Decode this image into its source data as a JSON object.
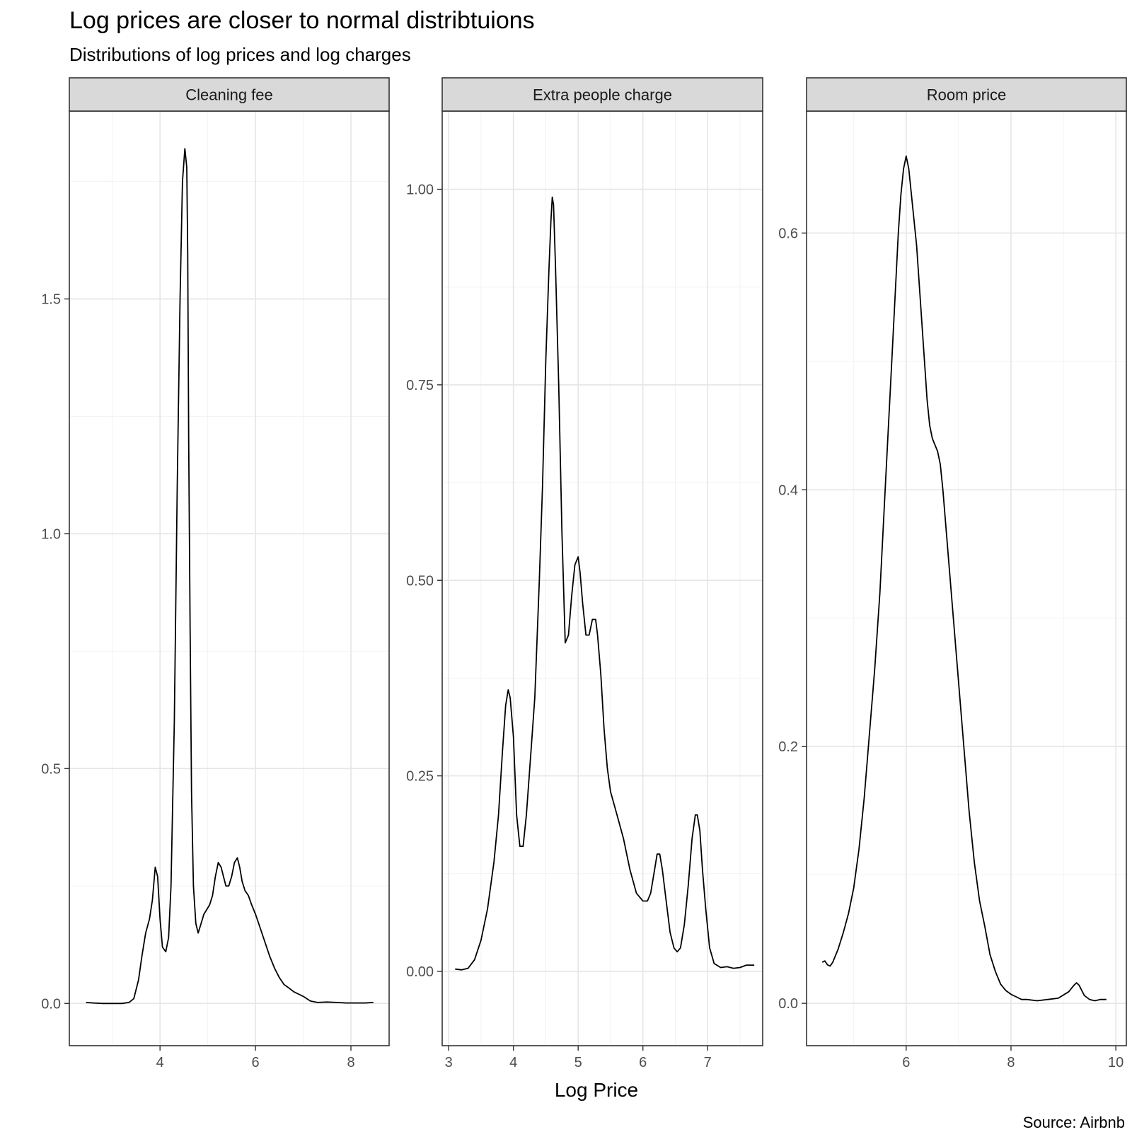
{
  "title": "Log prices are closer to normal distribtuions",
  "subtitle": "Distributions of log prices and log charges",
  "caption": "Source: Airbnb",
  "chart_data": {
    "type": "line",
    "title": "Log prices are closer to normal distribtuions",
    "subtitle": "Distributions of log prices and log charges",
    "xlabel": "Log Price",
    "ylabel": "",
    "grid": true,
    "line_color": "#000000",
    "facets": [
      {
        "label": "Cleaning fee",
        "xlim": [
          2.1,
          8.8
        ],
        "ylim": [
          -0.09,
          1.9
        ],
        "xticks": [
          4,
          6,
          8
        ],
        "yticks": [
          0.0,
          0.5,
          1.0,
          1.5
        ],
        "ytick_labels": [
          "0.0",
          "0.5",
          "1.0",
          "1.5"
        ],
        "x": [
          2.45,
          2.6,
          2.8,
          3.0,
          3.2,
          3.35,
          3.45,
          3.55,
          3.62,
          3.7,
          3.78,
          3.84,
          3.9,
          3.95,
          4.0,
          4.05,
          4.12,
          4.18,
          4.23,
          4.3,
          4.36,
          4.42,
          4.47,
          4.52,
          4.56,
          4.58,
          4.6,
          4.63,
          4.66,
          4.7,
          4.75,
          4.8,
          4.86,
          4.92,
          4.98,
          5.04,
          5.1,
          5.16,
          5.22,
          5.28,
          5.33,
          5.38,
          5.44,
          5.5,
          5.56,
          5.62,
          5.67,
          5.72,
          5.78,
          5.85,
          5.92,
          6.0,
          6.1,
          6.2,
          6.3,
          6.4,
          6.5,
          6.6,
          6.7,
          6.8,
          6.9,
          7.0,
          7.15,
          7.3,
          7.5,
          7.7,
          7.9,
          8.1,
          8.3,
          8.47
        ],
        "y": [
          0.002,
          0.001,
          0.0,
          0.0,
          0.0,
          0.002,
          0.01,
          0.05,
          0.1,
          0.15,
          0.18,
          0.22,
          0.29,
          0.27,
          0.18,
          0.12,
          0.11,
          0.14,
          0.25,
          0.6,
          1.1,
          1.5,
          1.75,
          1.82,
          1.78,
          1.6,
          1.2,
          0.8,
          0.45,
          0.25,
          0.17,
          0.15,
          0.17,
          0.19,
          0.2,
          0.21,
          0.23,
          0.27,
          0.3,
          0.29,
          0.27,
          0.25,
          0.25,
          0.27,
          0.3,
          0.31,
          0.29,
          0.26,
          0.24,
          0.23,
          0.21,
          0.19,
          0.16,
          0.13,
          0.1,
          0.075,
          0.055,
          0.04,
          0.033,
          0.025,
          0.02,
          0.015,
          0.005,
          0.002,
          0.003,
          0.002,
          0.001,
          0.001,
          0.001,
          0.002
        ]
      },
      {
        "label": "Extra people charge",
        "xlim": [
          2.9,
          7.85
        ],
        "ylim": [
          -0.095,
          1.1
        ],
        "xticks": [
          3,
          4,
          5,
          6,
          7
        ],
        "yticks": [
          0.0,
          0.25,
          0.5,
          0.75,
          1.0
        ],
        "ytick_labels": [
          "0.00",
          "0.25",
          "0.50",
          "0.75",
          "1.00"
        ],
        "x": [
          3.1,
          3.2,
          3.3,
          3.4,
          3.5,
          3.6,
          3.7,
          3.77,
          3.83,
          3.88,
          3.92,
          3.95,
          4.0,
          4.05,
          4.1,
          4.15,
          4.2,
          4.27,
          4.33,
          4.4,
          4.45,
          4.5,
          4.55,
          4.58,
          4.6,
          4.62,
          4.65,
          4.7,
          4.75,
          4.8,
          4.85,
          4.9,
          4.95,
          5.0,
          5.03,
          5.07,
          5.12,
          5.17,
          5.22,
          5.27,
          5.3,
          5.35,
          5.4,
          5.45,
          5.5,
          5.6,
          5.7,
          5.8,
          5.9,
          6.0,
          6.07,
          6.12,
          6.18,
          6.22,
          6.26,
          6.3,
          6.36,
          6.42,
          6.48,
          6.53,
          6.58,
          6.64,
          6.7,
          6.76,
          6.81,
          6.84,
          6.88,
          6.92,
          6.97,
          7.03,
          7.1,
          7.2,
          7.3,
          7.4,
          7.5,
          7.6,
          7.72
        ],
        "y": [
          0.003,
          0.002,
          0.004,
          0.015,
          0.04,
          0.08,
          0.14,
          0.2,
          0.28,
          0.34,
          0.36,
          0.35,
          0.3,
          0.2,
          0.16,
          0.16,
          0.2,
          0.28,
          0.35,
          0.5,
          0.62,
          0.78,
          0.9,
          0.96,
          0.99,
          0.98,
          0.9,
          0.75,
          0.56,
          0.42,
          0.43,
          0.48,
          0.52,
          0.53,
          0.51,
          0.47,
          0.43,
          0.43,
          0.45,
          0.45,
          0.43,
          0.38,
          0.31,
          0.26,
          0.23,
          0.2,
          0.17,
          0.13,
          0.1,
          0.09,
          0.09,
          0.1,
          0.13,
          0.15,
          0.15,
          0.13,
          0.09,
          0.05,
          0.03,
          0.025,
          0.03,
          0.06,
          0.11,
          0.17,
          0.2,
          0.2,
          0.18,
          0.13,
          0.08,
          0.03,
          0.01,
          0.005,
          0.006,
          0.004,
          0.005,
          0.008,
          0.008
        ]
      },
      {
        "label": "Room price",
        "xlim": [
          4.1,
          10.2
        ],
        "ylim": [
          -0.033,
          0.695
        ],
        "xticks": [
          6,
          8,
          10
        ],
        "yticks": [
          0.0,
          0.2,
          0.4,
          0.6
        ],
        "ytick_labels": [
          "0.0",
          "0.2",
          "0.4",
          "0.6"
        ],
        "x": [
          4.4,
          4.45,
          4.5,
          4.55,
          4.6,
          4.7,
          4.8,
          4.9,
          5.0,
          5.1,
          5.2,
          5.3,
          5.4,
          5.5,
          5.6,
          5.7,
          5.8,
          5.85,
          5.9,
          5.95,
          6.0,
          6.05,
          6.1,
          6.2,
          6.3,
          6.4,
          6.45,
          6.5,
          6.55,
          6.6,
          6.65,
          6.7,
          6.8,
          6.9,
          7.0,
          7.1,
          7.2,
          7.3,
          7.4,
          7.5,
          7.6,
          7.7,
          7.8,
          7.9,
          8.0,
          8.1,
          8.2,
          8.3,
          8.5,
          8.7,
          8.9,
          9.1,
          9.2,
          9.25,
          9.3,
          9.35,
          9.4,
          9.5,
          9.6,
          9.7,
          9.82
        ],
        "y": [
          0.032,
          0.033,
          0.03,
          0.029,
          0.032,
          0.042,
          0.055,
          0.07,
          0.09,
          0.12,
          0.16,
          0.21,
          0.26,
          0.32,
          0.4,
          0.48,
          0.56,
          0.6,
          0.63,
          0.65,
          0.66,
          0.65,
          0.63,
          0.59,
          0.53,
          0.47,
          0.45,
          0.44,
          0.435,
          0.43,
          0.42,
          0.4,
          0.35,
          0.3,
          0.25,
          0.2,
          0.15,
          0.11,
          0.08,
          0.06,
          0.038,
          0.025,
          0.015,
          0.01,
          0.007,
          0.005,
          0.003,
          0.003,
          0.002,
          0.003,
          0.004,
          0.009,
          0.014,
          0.016,
          0.014,
          0.01,
          0.006,
          0.003,
          0.002,
          0.003,
          0.003
        ]
      }
    ]
  }
}
